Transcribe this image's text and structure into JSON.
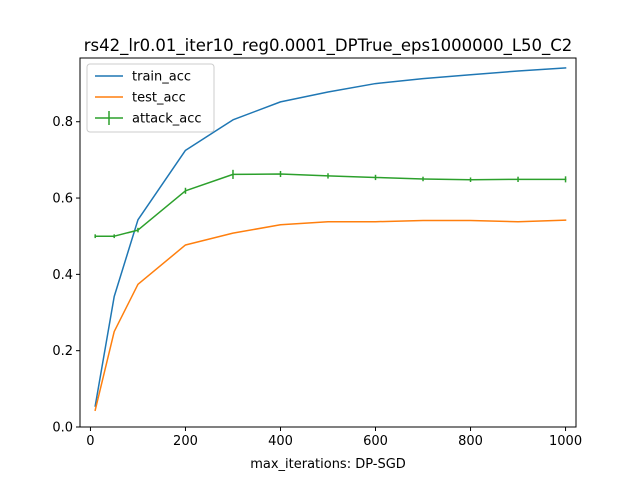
{
  "chart_data": {
    "type": "line",
    "title": "rs42_lr0.01_iter10_reg0.0001_DPTrue_eps1000000_L50_C2",
    "xlabel": "max_iterations: DP-SGD",
    "ylabel": "",
    "xlim": [
      -22,
      1022
    ],
    "ylim": [
      0,
      0.967
    ],
    "xticks": [
      0,
      200,
      400,
      600,
      800,
      1000
    ],
    "xtick_labels": [
      "0",
      "200",
      "400",
      "600",
      "800",
      "1000"
    ],
    "yticks": [
      0.0,
      0.2,
      0.4,
      0.6,
      0.8
    ],
    "ytick_labels": [
      "0.0",
      "0.2",
      "0.4",
      "0.6",
      "0.8"
    ],
    "grid": false,
    "legend_position": "top-left",
    "x": [
      10,
      50,
      100,
      200,
      300,
      400,
      500,
      600,
      700,
      800,
      900,
      1000
    ],
    "series": [
      {
        "name": "train_acc",
        "color": "#1f77b4",
        "values": [
          0.055,
          0.342,
          0.543,
          0.725,
          0.805,
          0.852,
          0.878,
          0.9,
          0.913,
          0.923,
          0.933,
          0.941
        ]
      },
      {
        "name": "test_acc",
        "color": "#ff7f0e",
        "values": [
          0.044,
          0.25,
          0.374,
          0.477,
          0.508,
          0.53,
          0.538,
          0.538,
          0.541,
          0.541,
          0.538,
          0.542
        ]
      },
      {
        "name": "attack_acc",
        "color": "#2ca02c",
        "errorbars": true,
        "values": [
          0.5,
          0.5,
          0.516,
          0.619,
          0.662,
          0.663,
          0.658,
          0.654,
          0.65,
          0.648,
          0.649,
          0.649
        ],
        "errors": [
          0.001,
          0.001,
          0.002,
          0.004,
          0.008,
          0.004,
          0.003,
          0.003,
          0.002,
          0.002,
          0.003,
          0.004
        ]
      }
    ]
  }
}
